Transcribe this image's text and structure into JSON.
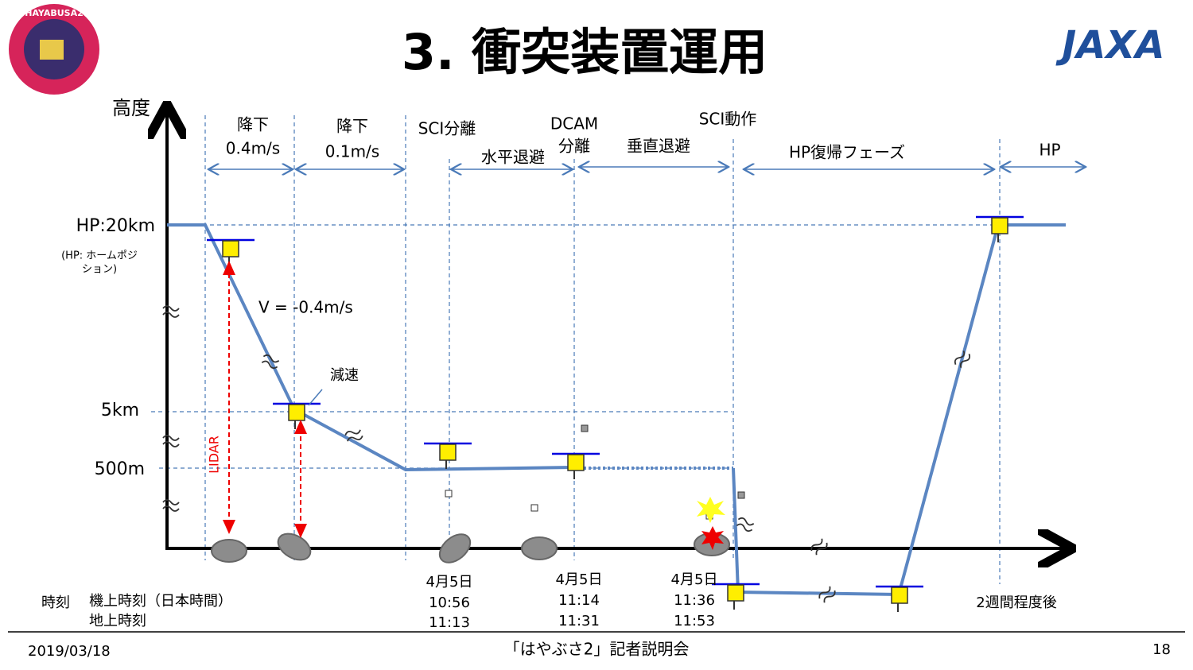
{
  "header": {
    "title": "3. 衝突装置運用",
    "mission_logo": "HAYABUSA2",
    "agency_logo": "JAXA"
  },
  "axis": {
    "y_label": "高度",
    "levels": {
      "hp": "HP:20km",
      "hp_note_1": "(HP: ホームポジ",
      "hp_note_2": "ション)",
      "mid": "5km",
      "low": "500m"
    }
  },
  "phases": [
    {
      "lines": [
        "降下",
        "0.4m/s"
      ]
    },
    {
      "lines": [
        "降下",
        "0.1m/s"
      ]
    },
    {
      "lines": [
        "SCI分離"
      ]
    },
    {
      "lines": [
        "水平退避"
      ]
    },
    {
      "lines": [
        "DCAM",
        "分離"
      ]
    },
    {
      "lines": [
        "垂直退避"
      ]
    },
    {
      "lines": [
        "SCI動作"
      ]
    },
    {
      "lines": [
        "HP復帰フェーズ"
      ]
    },
    {
      "lines": [
        "HP"
      ]
    }
  ],
  "annotations": {
    "velocity": "V = -0.4m/s",
    "decel": "減速",
    "lidar": "LIDAR"
  },
  "timeline": {
    "label": "時刻",
    "onboard_label": "機上時刻（日本時間）",
    "ground_label": "地上時刻",
    "events": [
      {
        "date": "4月5日",
        "onboard": "10:56",
        "ground": "11:13"
      },
      {
        "date": "4月5日",
        "onboard": "11:14",
        "ground": "11:31"
      },
      {
        "date": "4月5日",
        "onboard": "11:36",
        "ground": "11:53"
      }
    ],
    "later": "2週間程度後"
  },
  "footer": {
    "date": "2019/03/18",
    "event": "「はやぶさ2」記者説明会",
    "page": "18"
  }
}
